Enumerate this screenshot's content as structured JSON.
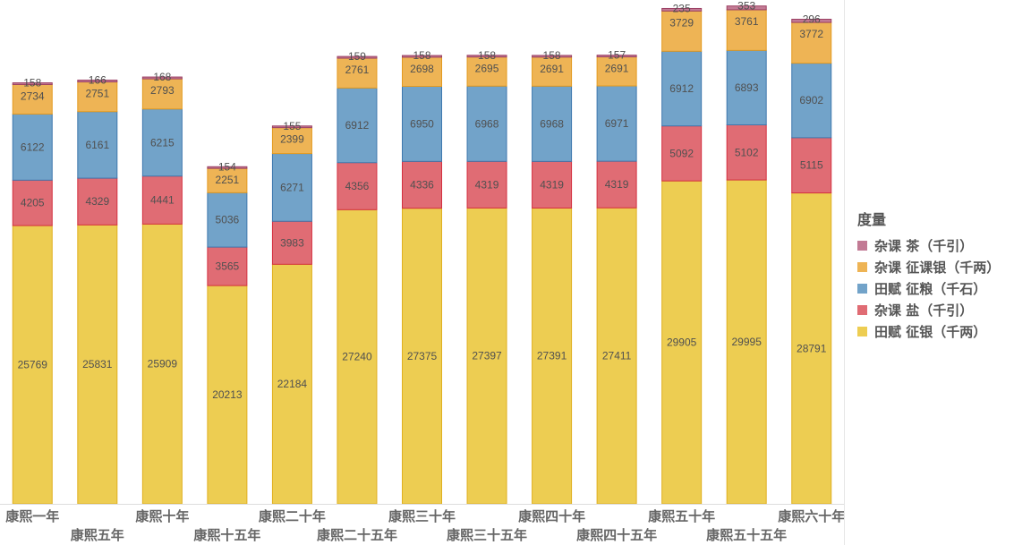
{
  "chart_data": {
    "type": "bar",
    "stacked": true,
    "title": "",
    "xlabel": "",
    "ylabel": "",
    "ylim": [
      0,
      45000
    ],
    "grid": false,
    "legend_title": "度量",
    "legend_position": "right",
    "categories": [
      "康熙一年",
      "康熙五年",
      "康熙十年",
      "康熙十五年",
      "康熙二十年",
      "康熙二十五年",
      "康熙三十年",
      "康熙三十五年",
      "康熙四十年",
      "康熙四十五年",
      "康熙五十年",
      "康熙五十五年",
      "康熙六十年"
    ],
    "series": [
      {
        "name": "田赋 征银（千两）",
        "color": "#edcd52",
        "border": "#e0b020",
        "values": [
          25769,
          25831,
          25909,
          20213,
          22184,
          27240,
          27375,
          27397,
          27391,
          27411,
          29905,
          29995,
          28791
        ]
      },
      {
        "name": "杂课 盐（千引）",
        "color": "#e06c74",
        "border": "#d43040",
        "values": [
          4205,
          4329,
          4441,
          3565,
          3983,
          4356,
          4336,
          4319,
          4319,
          4319,
          5092,
          5102,
          5115
        ]
      },
      {
        "name": "田赋 征粮（千石）",
        "color": "#72a3c9",
        "border": "#3f78ae",
        "values": [
          6122,
          6161,
          6215,
          5036,
          6271,
          6912,
          6950,
          6968,
          6968,
          6971,
          6912,
          6893,
          6902
        ]
      },
      {
        "name": "杂课 征课银（千两）",
        "color": "#eeb455",
        "border": "#e39a20",
        "values": [
          2734,
          2751,
          2793,
          2251,
          2399,
          2761,
          2698,
          2695,
          2691,
          2691,
          3729,
          3761,
          3772
        ]
      },
      {
        "name": "杂课 茶（千引）",
        "color": "#c27a94",
        "border": "#9c4064",
        "values": [
          158,
          166,
          168,
          154,
          155,
          159,
          158,
          158,
          158,
          157,
          235,
          353,
          296
        ]
      }
    ],
    "legend_order": [
      4,
      3,
      2,
      1,
      0
    ]
  }
}
